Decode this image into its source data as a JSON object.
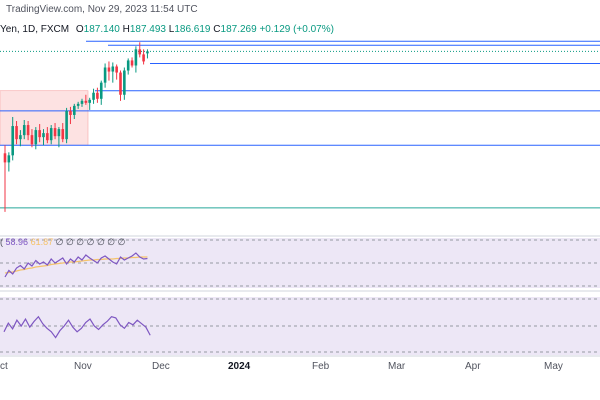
{
  "header": {
    "source": "TradingView.com, Nov 29, 2023 11:54 UTC",
    "symbol_desc": "Yen, 1D, FXCM",
    "open_label": "O",
    "open_value": "187.140",
    "high_label": "H",
    "high_value": "187.493",
    "low_label": "L",
    "low_value": "186.619",
    "close_label": "C",
    "close_value": "187.269",
    "change": "+0.129 (+0.07%)"
  },
  "indicator": {
    "label": "(",
    "rsi_value": "58.96",
    "ma_value": "61.87",
    "placeholders": "∅ ∅ ∅ ∅ ∅ ∅ ∅"
  },
  "x_axis": {
    "labels": [
      "ct",
      "Nov",
      "Dec",
      "2024",
      "Feb",
      "Mar",
      "Apr",
      "May"
    ]
  },
  "colors": {
    "up": "#089981",
    "down": "#f23645",
    "level_line": "#2962ff",
    "rsi": "#7e57c2",
    "rsi_ma": "#f5c36b",
    "panel_bg": "#ede7f6",
    "box_fill": "#fde2e2",
    "green_line": "#26a69a"
  },
  "chart_data": {
    "type": "candlestick",
    "title": "Yen, 1D, FXCM",
    "ylim": [
      170,
      191
    ],
    "x_labels": [
      "Oct",
      "Nov",
      "Dec",
      "2024",
      "Feb",
      "Mar",
      "Apr",
      "May"
    ],
    "candles": [
      {
        "o": 177.2,
        "h": 178.0,
        "l": 171.4,
        "c": 176.3
      },
      {
        "o": 176.3,
        "h": 177.3,
        "l": 175.4,
        "c": 177.0
      },
      {
        "o": 177.0,
        "h": 180.8,
        "l": 176.5,
        "c": 179.9
      },
      {
        "o": 179.9,
        "h": 180.4,
        "l": 178.1,
        "c": 178.6
      },
      {
        "o": 178.6,
        "h": 179.5,
        "l": 177.9,
        "c": 179.0
      },
      {
        "o": 179.0,
        "h": 180.5,
        "l": 178.6,
        "c": 180.0
      },
      {
        "o": 180.0,
        "h": 180.4,
        "l": 178.5,
        "c": 179.0
      },
      {
        "o": 179.0,
        "h": 179.6,
        "l": 177.8,
        "c": 178.1
      },
      {
        "o": 178.1,
        "h": 179.8,
        "l": 177.6,
        "c": 179.5
      },
      {
        "o": 179.5,
        "h": 180.1,
        "l": 178.3,
        "c": 178.8
      },
      {
        "o": 178.8,
        "h": 179.6,
        "l": 178.0,
        "c": 179.2
      },
      {
        "o": 179.2,
        "h": 179.8,
        "l": 178.2,
        "c": 178.5
      },
      {
        "o": 178.5,
        "h": 180.0,
        "l": 178.1,
        "c": 179.7
      },
      {
        "o": 179.7,
        "h": 180.2,
        "l": 178.6,
        "c": 178.9
      },
      {
        "o": 178.9,
        "h": 179.8,
        "l": 177.8,
        "c": 179.6
      },
      {
        "o": 179.6,
        "h": 180.2,
        "l": 178.3,
        "c": 178.6
      },
      {
        "o": 178.6,
        "h": 181.7,
        "l": 178.2,
        "c": 181.4
      },
      {
        "o": 181.4,
        "h": 181.8,
        "l": 180.1,
        "c": 181.0
      },
      {
        "o": 181.0,
        "h": 182.1,
        "l": 180.6,
        "c": 181.9
      },
      {
        "o": 181.9,
        "h": 182.3,
        "l": 181.6,
        "c": 182.1
      },
      {
        "o": 182.1,
        "h": 182.6,
        "l": 181.8,
        "c": 182.4
      },
      {
        "o": 182.4,
        "h": 183.0,
        "l": 182.0,
        "c": 182.2
      },
      {
        "o": 182.2,
        "h": 182.7,
        "l": 181.5,
        "c": 182.5
      },
      {
        "o": 182.5,
        "h": 183.6,
        "l": 182.1,
        "c": 183.2
      },
      {
        "o": 183.2,
        "h": 183.7,
        "l": 182.2,
        "c": 182.6
      },
      {
        "o": 182.6,
        "h": 184.4,
        "l": 182.0,
        "c": 184.2
      },
      {
        "o": 184.2,
        "h": 186.1,
        "l": 183.7,
        "c": 185.7
      },
      {
        "o": 185.7,
        "h": 186.3,
        "l": 184.4,
        "c": 185.3
      },
      {
        "o": 185.3,
        "h": 186.2,
        "l": 184.2,
        "c": 185.8
      },
      {
        "o": 185.8,
        "h": 186.0,
        "l": 184.5,
        "c": 185.2
      },
      {
        "o": 185.2,
        "h": 185.4,
        "l": 182.4,
        "c": 183.0
      },
      {
        "o": 183.0,
        "h": 185.7,
        "l": 182.5,
        "c": 185.4
      },
      {
        "o": 185.4,
        "h": 186.6,
        "l": 185.0,
        "c": 186.4
      },
      {
        "o": 186.4,
        "h": 186.7,
        "l": 185.7,
        "c": 185.9
      },
      {
        "o": 185.9,
        "h": 187.8,
        "l": 185.2,
        "c": 187.5
      },
      {
        "o": 187.5,
        "h": 188.2,
        "l": 186.7,
        "c": 187.0
      },
      {
        "o": 187.0,
        "h": 187.5,
        "l": 186.0,
        "c": 186.3
      },
      {
        "o": 187.1,
        "h": 187.5,
        "l": 186.6,
        "c": 187.3
      }
    ],
    "levels": [
      188.3,
      187.9,
      186.1,
      183.4,
      181.4,
      178.0,
      171.8
    ],
    "rsi": [
      22,
      35,
      28,
      40,
      45,
      38,
      50,
      44,
      55,
      48,
      52,
      46,
      58,
      50,
      55,
      60,
      48,
      58,
      52,
      62,
      56,
      66,
      60,
      55,
      50,
      60,
      64,
      58,
      52,
      48,
      62,
      56,
      60,
      64,
      70,
      62,
      58,
      59
    ],
    "rsi_ma": [
      30,
      31,
      32,
      34,
      36,
      37,
      39,
      40,
      42,
      43,
      44,
      45,
      47,
      48,
      49,
      50,
      51,
      52,
      52,
      53,
      54,
      55,
      56,
      56,
      57,
      57,
      58,
      58,
      58,
      59,
      59,
      60,
      60,
      61,
      61,
      62,
      62,
      62
    ],
    "osc": [
      40,
      55,
      45,
      60,
      50,
      62,
      48,
      58,
      66,
      54,
      46,
      40,
      30,
      42,
      50,
      60,
      48,
      40,
      46,
      56,
      62,
      50,
      44,
      52,
      58,
      66,
      64,
      52,
      46,
      56,
      52,
      60,
      54,
      48,
      34
    ]
  }
}
